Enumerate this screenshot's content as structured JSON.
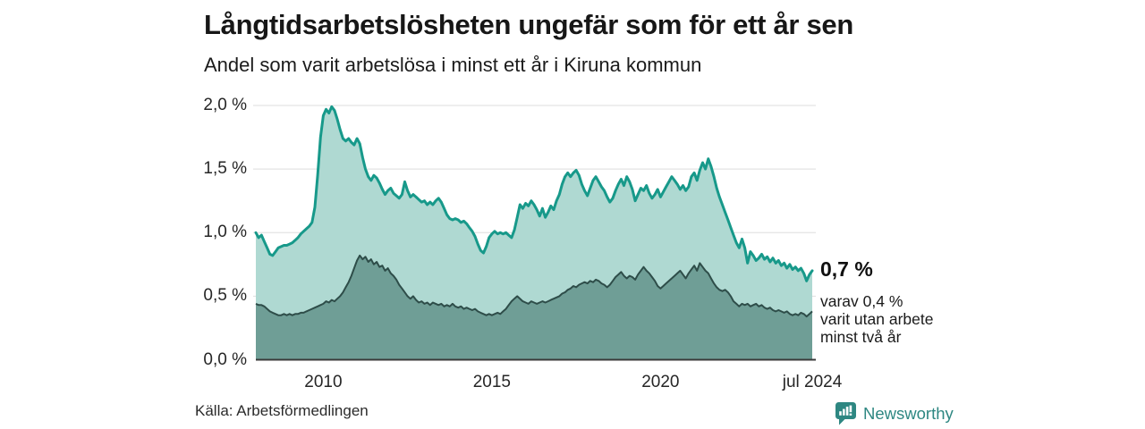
{
  "header": {
    "title": "Långtidsarbetslösheten ungefär som för ett år sen",
    "subtitle": "Andel som varit arbetslösa i minst ett år i Kiruna kommun"
  },
  "chart_data": {
    "type": "area",
    "title": "Långtidsarbetslösheten ungefär som för ett år sen",
    "subtitle": "Andel som varit arbetslösa i minst ett år i Kiruna kommun",
    "unit": "%",
    "x_range": [
      2008.0,
      2024.5
    ],
    "points_per_year": 12,
    "ylim": [
      0,
      2.0
    ],
    "grid": true,
    "y_ticks": [
      {
        "label": "2,0 %",
        "value": 2.0
      },
      {
        "label": "1,5 %",
        "value": 1.5
      },
      {
        "label": "1,0 %",
        "value": 1.0
      },
      {
        "label": "0,5 %",
        "value": 0.5
      },
      {
        "label": "0,0 %",
        "value": 0.0
      }
    ],
    "x_ticks": [
      {
        "label": "2010",
        "value": 2010
      },
      {
        "label": "2015",
        "value": 2015
      },
      {
        "label": "2020",
        "value": 2020
      },
      {
        "label": "jul 2024",
        "value": 2024.5
      }
    ],
    "series": [
      {
        "name": "Arbetslösa minst ett år",
        "latest_label": "0,7 %",
        "color": "#17998a",
        "fill": "#afd9d2",
        "values": [
          1.0,
          0.96,
          0.98,
          0.93,
          0.88,
          0.83,
          0.82,
          0.85,
          0.88,
          0.89,
          0.9,
          0.9,
          0.91,
          0.92,
          0.94,
          0.96,
          0.99,
          1.01,
          1.03,
          1.05,
          1.08,
          1.2,
          1.45,
          1.75,
          1.92,
          1.97,
          1.94,
          1.99,
          1.96,
          1.89,
          1.81,
          1.74,
          1.72,
          1.74,
          1.71,
          1.69,
          1.74,
          1.7,
          1.59,
          1.5,
          1.44,
          1.41,
          1.45,
          1.43,
          1.39,
          1.34,
          1.3,
          1.33,
          1.35,
          1.31,
          1.29,
          1.27,
          1.3,
          1.4,
          1.33,
          1.28,
          1.3,
          1.28,
          1.26,
          1.24,
          1.25,
          1.22,
          1.24,
          1.22,
          1.25,
          1.27,
          1.24,
          1.19,
          1.14,
          1.11,
          1.1,
          1.11,
          1.1,
          1.08,
          1.09,
          1.07,
          1.04,
          1.01,
          0.97,
          0.91,
          0.86,
          0.84,
          0.89,
          0.96,
          0.99,
          1.01,
          0.99,
          1.0,
          0.99,
          1.0,
          0.98,
          0.96,
          1.02,
          1.12,
          1.22,
          1.19,
          1.23,
          1.21,
          1.25,
          1.22,
          1.18,
          1.13,
          1.19,
          1.12,
          1.16,
          1.21,
          1.18,
          1.25,
          1.3,
          1.38,
          1.44,
          1.47,
          1.44,
          1.47,
          1.49,
          1.45,
          1.38,
          1.33,
          1.29,
          1.35,
          1.41,
          1.44,
          1.4,
          1.36,
          1.33,
          1.28,
          1.24,
          1.27,
          1.33,
          1.38,
          1.42,
          1.37,
          1.44,
          1.4,
          1.34,
          1.25,
          1.3,
          1.35,
          1.33,
          1.37,
          1.31,
          1.27,
          1.3,
          1.34,
          1.28,
          1.32,
          1.36,
          1.4,
          1.44,
          1.41,
          1.38,
          1.34,
          1.37,
          1.33,
          1.36,
          1.44,
          1.47,
          1.41,
          1.49,
          1.55,
          1.5,
          1.58,
          1.52,
          1.44,
          1.35,
          1.28,
          1.22,
          1.16,
          1.1,
          1.04,
          0.98,
          0.92,
          0.88,
          0.95,
          0.88,
          0.76,
          0.85,
          0.82,
          0.78,
          0.8,
          0.83,
          0.79,
          0.81,
          0.77,
          0.8,
          0.76,
          0.78,
          0.74,
          0.76,
          0.72,
          0.75,
          0.71,
          0.73,
          0.7,
          0.72,
          0.68,
          0.62,
          0.67,
          0.7
        ]
      },
      {
        "name": "Varav utan arbete minst två år",
        "latest_label": "0,4 %",
        "color": "#2e4d49",
        "fill": "#6f9e96",
        "values": [
          0.44,
          0.43,
          0.43,
          0.42,
          0.4,
          0.38,
          0.37,
          0.36,
          0.35,
          0.35,
          0.36,
          0.35,
          0.36,
          0.35,
          0.36,
          0.36,
          0.37,
          0.37,
          0.38,
          0.39,
          0.4,
          0.41,
          0.42,
          0.43,
          0.44,
          0.46,
          0.45,
          0.47,
          0.46,
          0.48,
          0.5,
          0.53,
          0.57,
          0.61,
          0.66,
          0.72,
          0.78,
          0.82,
          0.79,
          0.81,
          0.77,
          0.79,
          0.75,
          0.77,
          0.73,
          0.74,
          0.7,
          0.72,
          0.68,
          0.66,
          0.63,
          0.59,
          0.56,
          0.53,
          0.5,
          0.48,
          0.5,
          0.47,
          0.45,
          0.46,
          0.44,
          0.45,
          0.43,
          0.45,
          0.44,
          0.43,
          0.44,
          0.42,
          0.43,
          0.42,
          0.44,
          0.42,
          0.41,
          0.42,
          0.4,
          0.41,
          0.4,
          0.39,
          0.4,
          0.38,
          0.37,
          0.36,
          0.35,
          0.36,
          0.35,
          0.36,
          0.37,
          0.36,
          0.38,
          0.4,
          0.43,
          0.46,
          0.48,
          0.5,
          0.48,
          0.46,
          0.45,
          0.44,
          0.46,
          0.45,
          0.44,
          0.45,
          0.46,
          0.45,
          0.46,
          0.47,
          0.48,
          0.49,
          0.5,
          0.52,
          0.53,
          0.55,
          0.56,
          0.58,
          0.57,
          0.59,
          0.6,
          0.61,
          0.6,
          0.62,
          0.61,
          0.63,
          0.62,
          0.6,
          0.59,
          0.57,
          0.59,
          0.62,
          0.65,
          0.67,
          0.69,
          0.66,
          0.64,
          0.66,
          0.65,
          0.63,
          0.67,
          0.7,
          0.73,
          0.7,
          0.68,
          0.65,
          0.62,
          0.58,
          0.56,
          0.58,
          0.6,
          0.62,
          0.64,
          0.66,
          0.68,
          0.7,
          0.67,
          0.64,
          0.68,
          0.71,
          0.74,
          0.7,
          0.76,
          0.73,
          0.7,
          0.68,
          0.64,
          0.6,
          0.57,
          0.55,
          0.54,
          0.55,
          0.53,
          0.5,
          0.46,
          0.44,
          0.42,
          0.44,
          0.43,
          0.44,
          0.42,
          0.43,
          0.44,
          0.42,
          0.43,
          0.41,
          0.4,
          0.41,
          0.39,
          0.38,
          0.39,
          0.38,
          0.37,
          0.38,
          0.36,
          0.35,
          0.36,
          0.35,
          0.37,
          0.36,
          0.34,
          0.36,
          0.38
        ]
      }
    ]
  },
  "annotation": {
    "value_label": "0,7 %",
    "detail_lines": [
      "varav 0,4 %",
      "varit utan arbete",
      "minst två år"
    ]
  },
  "footer": {
    "source": "Källa: Arbetsförmedlingen",
    "brand": "Newsworthy"
  },
  "colors": {
    "line_primary": "#17998a",
    "fill_primary": "#afd9d2",
    "line_secondary": "#2e4d49",
    "fill_secondary": "#6f9e96",
    "grid": "#dedede",
    "axis": "#3a3a3a",
    "brand_teal": "#2e8782"
  }
}
